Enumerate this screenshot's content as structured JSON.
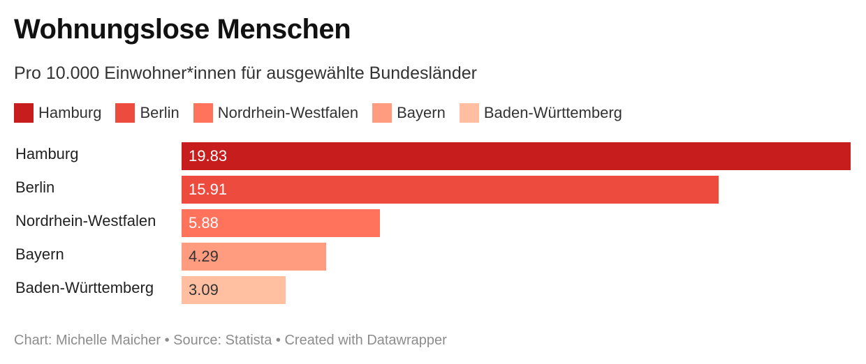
{
  "header": {
    "title": "Wohnungslose Menschen",
    "subtitle": "Pro 10.000 Einwohner*innen für ausgewählte Bundesländer"
  },
  "legend": [
    {
      "label": "Hamburg",
      "color": "#c71e1d"
    },
    {
      "label": "Berlin",
      "color": "#ed4b3e"
    },
    {
      "label": "Nordrhein-Westfalen",
      "color": "#ff735c"
    },
    {
      "label": "Bayern",
      "color": "#ff9b7f"
    },
    {
      "label": "Baden-Württemberg",
      "color": "#ffbfa0"
    }
  ],
  "chart_data": {
    "type": "bar",
    "orientation": "horizontal",
    "title": "Wohnungslose Menschen",
    "subtitle": "Pro 10.000 Einwohner*innen für ausgewählte Bundesländer",
    "categories": [
      "Hamburg",
      "Berlin",
      "Nordrhein-Westfalen",
      "Bayern",
      "Baden-Württemberg"
    ],
    "values": [
      19.83,
      15.91,
      5.88,
      4.29,
      3.09
    ],
    "value_labels": [
      "19.83",
      "15.91",
      "5.88",
      "4.29",
      "3.09"
    ],
    "colors": [
      "#c71e1d",
      "#ed4b3e",
      "#ff735c",
      "#ff9b7f",
      "#ffbfa0"
    ],
    "value_label_colors": [
      "#ffffff",
      "#ffffff",
      "#ffffff",
      "#333333",
      "#333333"
    ],
    "xlabel": "",
    "ylabel": "",
    "xlim": [
      0,
      19.83
    ],
    "grid": false,
    "legend_position": "top-left"
  },
  "footer": {
    "text": "Chart: Michelle Maicher • Source: Statista • Created with Datawrapper"
  }
}
